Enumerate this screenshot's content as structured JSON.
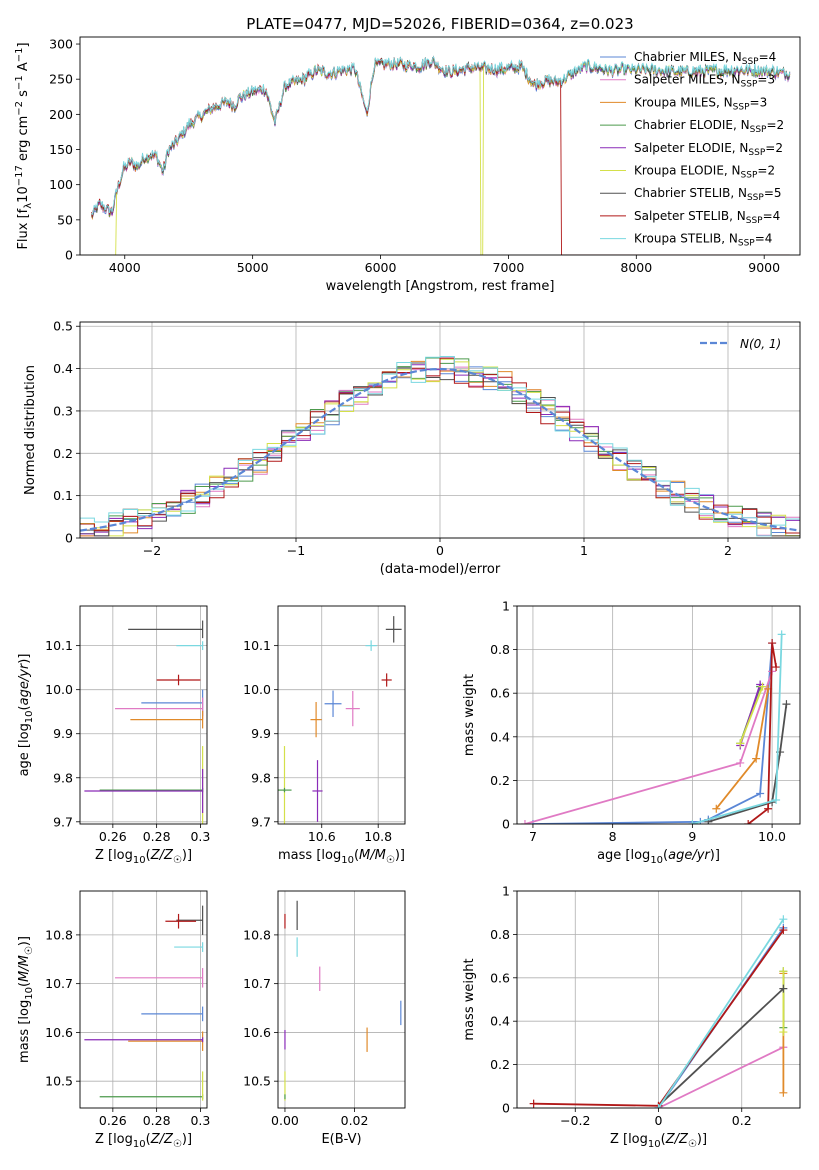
{
  "figure": {
    "title": "PLATE=0477, MJD=52026, FIBERID=0364, z=0.023",
    "colors": {
      "Chabrier MILES": "#5b87d6",
      "Salpeter MILES": "#e07ac4",
      "Kroupa MILES": "#e08a2a",
      "Chabrier ELODIE": "#4c9a4c",
      "Salpeter ELODIE": "#8a2bb8",
      "Kroupa ELODIE": "#d4e04a",
      "Chabrier STELIB": "#505050",
      "Salpeter STELIB": "#b01818",
      "Kroupa STELIB": "#7ad8e0"
    }
  },
  "chart_data": [
    {
      "id": "spectrum",
      "type": "line",
      "xlabel": "wavelength [Angstrom, rest frame]",
      "ylabel": "Flux [f_λ 10^-17 erg cm^-2 s^-1 A^-1]",
      "xlim": [
        3650,
        9280
      ],
      "ylim": [
        0,
        310
      ],
      "xticks": [
        4000,
        5000,
        6000,
        7000,
        8000,
        9000
      ],
      "yticks": [
        0,
        50,
        100,
        150,
        200,
        250,
        300
      ],
      "grid": false,
      "legend_position": "right",
      "legend": [
        {
          "label": "Chabrier MILES, N",
          "sub": "SSP",
          "tail": "=4",
          "key": "Chabrier MILES"
        },
        {
          "label": "Salpeter MILES, N",
          "sub": "SSP",
          "tail": "=3",
          "key": "Salpeter MILES"
        },
        {
          "label": "Kroupa MILES, N",
          "sub": "SSP",
          "tail": "=3",
          "key": "Kroupa MILES"
        },
        {
          "label": "Chabrier ELODIE, N",
          "sub": "SSP",
          "tail": "=2",
          "key": "Chabrier ELODIE"
        },
        {
          "label": "Salpeter ELODIE, N",
          "sub": "SSP",
          "tail": "=2",
          "key": "Salpeter ELODIE"
        },
        {
          "label": "Kroupa ELODIE, N",
          "sub": "SSP",
          "tail": "=2",
          "key": "Kroupa ELODIE"
        },
        {
          "label": "Chabrier STELIB, N",
          "sub": "SSP",
          "tail": "=5",
          "key": "Chabrier STELIB"
        },
        {
          "label": "Salpeter STELIB, N",
          "sub": "SSP",
          "tail": "=4",
          "key": "Salpeter STELIB"
        },
        {
          "label": "Kroupa STELIB, N",
          "sub": "SSP",
          "tail": "=4",
          "key": "Kroupa STELIB"
        }
      ],
      "continuum": [
        [
          3740,
          55
        ],
        [
          3800,
          72
        ],
        [
          3860,
          65
        ],
        [
          3900,
          60
        ],
        [
          3940,
          92
        ],
        [
          3990,
          122
        ],
        [
          4050,
          132
        ],
        [
          4100,
          125
        ],
        [
          4150,
          138
        ],
        [
          4200,
          142
        ],
        [
          4250,
          140
        ],
        [
          4300,
          118
        ],
        [
          4340,
          148
        ],
        [
          4400,
          160
        ],
        [
          4450,
          172
        ],
        [
          4500,
          185
        ],
        [
          4600,
          198
        ],
        [
          4700,
          210
        ],
        [
          4800,
          218
        ],
        [
          4860,
          212
        ],
        [
          4900,
          224
        ],
        [
          5000,
          232
        ],
        [
          5100,
          236
        ],
        [
          5175,
          188
        ],
        [
          5250,
          240
        ],
        [
          5400,
          250
        ],
        [
          5500,
          262
        ],
        [
          5600,
          258
        ],
        [
          5700,
          262
        ],
        [
          5800,
          265
        ],
        [
          5893,
          200
        ],
        [
          5950,
          270
        ],
        [
          6100,
          272
        ],
        [
          6300,
          268
        ],
        [
          6400,
          276
        ],
        [
          6500,
          262
        ],
        [
          6563,
          260
        ],
        [
          6700,
          266
        ],
        [
          6900,
          264
        ],
        [
          7000,
          265
        ],
        [
          7100,
          268
        ],
        [
          7200,
          242
        ],
        [
          7300,
          248
        ],
        [
          7400,
          246
        ],
        [
          7500,
          258
        ],
        [
          7600,
          268
        ],
        [
          7700,
          266
        ],
        [
          7800,
          262
        ],
        [
          7900,
          264
        ],
        [
          8000,
          263
        ],
        [
          8200,
          262
        ],
        [
          8400,
          260
        ],
        [
          8600,
          262
        ],
        [
          8800,
          263
        ],
        [
          9000,
          262
        ],
        [
          9200,
          258
        ]
      ],
      "cutoffs": [
        {
          "key": "Kroupa ELODIE",
          "x": 3920
        },
        {
          "key": "Kroupa ELODIE",
          "x": 6790
        },
        {
          "key": "Salpeter STELIB",
          "x": 7420
        }
      ]
    },
    {
      "id": "residual_hist",
      "type": "histogram",
      "xlabel": "(data-model)/error",
      "ylabel": "Normed distribution",
      "xlim": [
        -2.5,
        2.5
      ],
      "ylim": [
        0,
        0.51
      ],
      "xticks": [
        -2,
        -1,
        0,
        1,
        2
      ],
      "yticks": [
        0.0,
        0.1,
        0.2,
        0.3,
        0.4,
        0.5
      ],
      "grid": true,
      "bin_width": 0.1,
      "reference": {
        "label": "N(0, 1)",
        "mu": 0,
        "sigma": 1,
        "color": "#5b87d6"
      },
      "legend_position": "top-right"
    },
    {
      "id": "age_vs_Z",
      "type": "errorbar",
      "xlabel": "Z [log10(Z/Z☉)]",
      "ylabel": "age  [log10(age/yr)]",
      "xlim": [
        0.245,
        0.303
      ],
      "ylim": [
        9.695,
        10.19
      ],
      "xticks": [
        0.26,
        0.28,
        0.3
      ],
      "yticks": [
        9.7,
        9.8,
        9.9,
        10.0,
        10.1
      ],
      "grid": true,
      "points": [
        {
          "key": "Chabrier STELIB",
          "x": 0.301,
          "y": 10.137,
          "xerr": [
            0.034,
            0
          ],
          "yerr": 0.02
        },
        {
          "key": "Kroupa STELIB",
          "x": 0.301,
          "y": 10.1,
          "xerr": [
            0.012,
            0
          ],
          "yerr": 0.01
        },
        {
          "key": "Salpeter STELIB",
          "x": 0.29,
          "y": 10.022,
          "xerr": [
            0.01,
            0.01
          ],
          "yerr": 0.012
        },
        {
          "key": "Chabrier MILES",
          "x": 0.301,
          "y": 9.97,
          "xerr": [
            0.028,
            0
          ],
          "yerr": 0.03
        },
        {
          "key": "Salpeter MILES",
          "x": 0.301,
          "y": 9.957,
          "xerr": [
            0.04,
            0
          ],
          "yerr": 0.025
        },
        {
          "key": "Kroupa MILES",
          "x": 0.301,
          "y": 9.932,
          "xerr": [
            0.033,
            0
          ],
          "yerr": 0.02
        },
        {
          "key": "Kroupa ELODIE",
          "x": 0.301,
          "y": 9.772,
          "xerr": [
            0.047,
            0
          ],
          "yerr": 0.1
        },
        {
          "key": "Chabrier ELODIE",
          "x": 0.301,
          "y": 9.772,
          "xerr": [
            0.047,
            0
          ],
          "yerr": 0.005
        },
        {
          "key": "Salpeter ELODIE",
          "x": 0.301,
          "y": 9.77,
          "xerr": [
            0.054,
            0
          ],
          "yerr": 0.05
        }
      ]
    },
    {
      "id": "age_vs_mass",
      "type": "errorbar",
      "xlabel": "mass [log10(M/M☉)]",
      "ylabel": "",
      "xlim": [
        10.445,
        10.895
      ],
      "ylim": [
        9.695,
        10.19
      ],
      "xticks": [
        10.6,
        10.8
      ],
      "yticks": [
        9.7,
        9.8,
        9.9,
        10.0,
        10.1
      ],
      "grid": true,
      "points": [
        {
          "key": "Chabrier STELIB",
          "x": 10.855,
          "y": 10.137,
          "xerr": 0.028,
          "yerr": 0.03
        },
        {
          "key": "Kroupa STELIB",
          "x": 10.775,
          "y": 10.1,
          "xerr": 0.02,
          "yerr": 0.012
        },
        {
          "key": "Salpeter STELIB",
          "x": 10.83,
          "y": 10.022,
          "xerr": 0.018,
          "yerr": 0.015
        },
        {
          "key": "Chabrier MILES",
          "x": 10.64,
          "y": 9.968,
          "xerr": 0.03,
          "yerr": 0.03
        },
        {
          "key": "Salpeter MILES",
          "x": 10.71,
          "y": 9.957,
          "xerr": 0.025,
          "yerr": 0.04
        },
        {
          "key": "Kroupa MILES",
          "x": 10.58,
          "y": 9.932,
          "xerr": 0.02,
          "yerr": 0.04
        },
        {
          "key": "Kroupa ELODIE",
          "x": 10.468,
          "y": 9.772,
          "xerr": 0.005,
          "yerr": 0.1
        },
        {
          "key": "Chabrier ELODIE",
          "x": 10.468,
          "y": 9.772,
          "xerr": 0.025,
          "yerr": 0.005
        },
        {
          "key": "Salpeter ELODIE",
          "x": 10.585,
          "y": 9.77,
          "xerr": 0.018,
          "yerr": 0.07
        }
      ]
    },
    {
      "id": "mass_weight_vs_age",
      "type": "line",
      "xlabel": "age  [log10(age/yr)]",
      "ylabel": "mass weight",
      "xlim": [
        6.8,
        10.35
      ],
      "ylim": [
        0,
        1.0
      ],
      "xticks": [
        7,
        8,
        9,
        10
      ],
      "yticks": [
        0.0,
        0.2,
        0.4,
        0.6,
        0.8,
        1.0
      ],
      "grid": true,
      "series": [
        {
          "key": "Chabrier MILES",
          "x": [
            7.0,
            9.1,
            9.2,
            9.85,
            10.0
          ],
          "y": [
            0.0,
            0.01,
            0.02,
            0.14,
            0.83
          ]
        },
        {
          "key": "Salpeter MILES",
          "x": [
            6.9,
            9.6,
            10.0
          ],
          "y": [
            0.0,
            0.28,
            0.7
          ]
        },
        {
          "key": "Kroupa MILES",
          "x": [
            9.3,
            9.8,
            9.95
          ],
          "y": [
            0.07,
            0.3,
            0.62
          ]
        },
        {
          "key": "Chabrier ELODIE",
          "x": [
            9.6,
            9.85
          ],
          "y": [
            0.37,
            0.63
          ]
        },
        {
          "key": "Salpeter ELODIE",
          "x": [
            9.6,
            9.85
          ],
          "y": [
            0.36,
            0.64
          ]
        },
        {
          "key": "Kroupa ELODIE",
          "x": [
            9.6,
            9.88
          ],
          "y": [
            0.37,
            0.63
          ]
        },
        {
          "key": "Chabrier STELIB",
          "x": [
            9.2,
            10.0,
            10.1,
            10.18
          ],
          "y": [
            0.01,
            0.1,
            0.33,
            0.55
          ]
        },
        {
          "key": "Salpeter STELIB",
          "x": [
            9.7,
            9.95,
            10.0,
            10.05
          ],
          "y": [
            0.0,
            0.07,
            0.83,
            0.72
          ]
        },
        {
          "key": "Kroupa STELIB",
          "x": [
            9.0,
            10.05,
            10.12
          ],
          "y": [
            0.0,
            0.11,
            0.87
          ]
        }
      ]
    },
    {
      "id": "mass_vs_Z",
      "type": "errorbar",
      "xlabel": "Z [log10(Z/Z☉)]",
      "ylabel": "mass [log10(M/M☉)]",
      "xlim": [
        0.245,
        0.303
      ],
      "ylim": [
        10.445,
        10.89
      ],
      "xticks": [
        0.26,
        0.28,
        0.3
      ],
      "yticks": [
        10.5,
        10.6,
        10.7,
        10.8
      ],
      "grid": true,
      "points": [
        {
          "key": "Chabrier STELIB",
          "x": 0.301,
          "y": 10.83,
          "xerr": [
            0.012,
            0
          ],
          "yerr": 0.03
        },
        {
          "key": "Salpeter STELIB",
          "x": 0.29,
          "y": 10.828,
          "xerr": [
            0.006,
            0.008
          ],
          "yerr": 0.015
        },
        {
          "key": "Kroupa STELIB",
          "x": 0.301,
          "y": 10.775,
          "xerr": [
            0.013,
            0
          ],
          "yerr": 0.01
        },
        {
          "key": "Salpeter MILES",
          "x": 0.301,
          "y": 10.712,
          "xerr": [
            0.04,
            0
          ],
          "yerr": 0.02
        },
        {
          "key": "Chabrier MILES",
          "x": 0.301,
          "y": 10.638,
          "xerr": [
            0.028,
            0
          ],
          "yerr": 0.015
        },
        {
          "key": "Kroupa MILES",
          "x": 0.301,
          "y": 10.582,
          "xerr": [
            0.034,
            0
          ],
          "yerr": 0.02
        },
        {
          "key": "Salpeter ELODIE",
          "x": 0.301,
          "y": 10.585,
          "xerr": [
            0.054,
            0
          ],
          "yerr": 0.005
        },
        {
          "key": "Chabrier ELODIE",
          "x": 0.301,
          "y": 10.468,
          "xerr": [
            0.047,
            0
          ],
          "yerr": 0.005
        },
        {
          "key": "Kroupa ELODIE",
          "x": 0.301,
          "y": 10.49,
          "xerr": [
            0,
            0
          ],
          "yerr": 0.03
        }
      ]
    },
    {
      "id": "mass_vs_ebv",
      "type": "errorbar",
      "xlabel": "E(B-V)",
      "ylabel": "",
      "xlim": [
        -0.002,
        0.0345
      ],
      "ylim": [
        10.445,
        10.89
      ],
      "xticks": [
        0.0,
        0.02
      ],
      "yticks": [
        10.5,
        10.6,
        10.7,
        10.8
      ],
      "grid": true,
      "points": [
        {
          "key": "Chabrier STELIB",
          "x": 0.0035,
          "y": 10.84,
          "xerr": 0,
          "yerr": 0.03
        },
        {
          "key": "Salpeter STELIB",
          "x": 0.0,
          "y": 10.828,
          "xerr": 0,
          "yerr": 0.015
        },
        {
          "key": "Kroupa STELIB",
          "x": 0.0035,
          "y": 10.775,
          "xerr": 0,
          "yerr": 0.02
        },
        {
          "key": "Salpeter MILES",
          "x": 0.01,
          "y": 10.71,
          "xerr": 0,
          "yerr": 0.025
        },
        {
          "key": "Chabrier MILES",
          "x": 0.0333,
          "y": 10.64,
          "xerr": 0,
          "yerr": 0.025
        },
        {
          "key": "Kroupa MILES",
          "x": 0.0236,
          "y": 10.585,
          "xerr": 0,
          "yerr": 0.025
        },
        {
          "key": "Salpeter ELODIE",
          "x": 0.0,
          "y": 10.585,
          "xerr": 0,
          "yerr": 0.02
        },
        {
          "key": "Kroupa ELODIE",
          "x": 0.0,
          "y": 10.49,
          "xerr": 0,
          "yerr": 0.03
        },
        {
          "key": "Chabrier ELODIE",
          "x": 0.0,
          "y": 10.468,
          "xerr": 0,
          "yerr": 0.005
        }
      ]
    },
    {
      "id": "mass_weight_vs_Z",
      "type": "line",
      "xlabel": "Z [log10(Z/Z☉)]",
      "ylabel": "mass weight",
      "xlim": [
        -0.34,
        0.34
      ],
      "ylim": [
        0,
        1.0
      ],
      "xticks": [
        -0.2,
        0.0,
        0.2
      ],
      "yticks": [
        0.0,
        0.2,
        0.4,
        0.6,
        0.8,
        1.0
      ],
      "grid": true,
      "series": [
        {
          "key": "Chabrier MILES",
          "x": [
            0.0,
            0.3
          ],
          "y": [
            0.0,
            0.83
          ]
        },
        {
          "key": "Salpeter MILES",
          "x": [
            0.0,
            0.3
          ],
          "y": [
            0.0,
            0.28
          ]
        },
        {
          "key": "Kroupa MILES",
          "x": [
            0.3,
            0.3
          ],
          "y": [
            0.07,
            0.62
          ]
        },
        {
          "key": "Chabrier ELODIE",
          "x": [
            0.3,
            0.3
          ],
          "y": [
            0.37,
            0.63
          ]
        },
        {
          "key": "Kroupa ELODIE",
          "x": [
            0.3,
            0.3
          ],
          "y": [
            0.35,
            0.63
          ]
        },
        {
          "key": "Chabrier STELIB",
          "x": [
            0.0,
            0.3
          ],
          "y": [
            0.01,
            0.55
          ]
        },
        {
          "key": "Salpeter STELIB",
          "x": [
            -0.3,
            0.0,
            0.3
          ],
          "y": [
            0.02,
            0.01,
            0.82
          ]
        },
        {
          "key": "Kroupa STELIB",
          "x": [
            0.0,
            0.3
          ],
          "y": [
            0.0,
            0.87
          ]
        }
      ]
    }
  ]
}
